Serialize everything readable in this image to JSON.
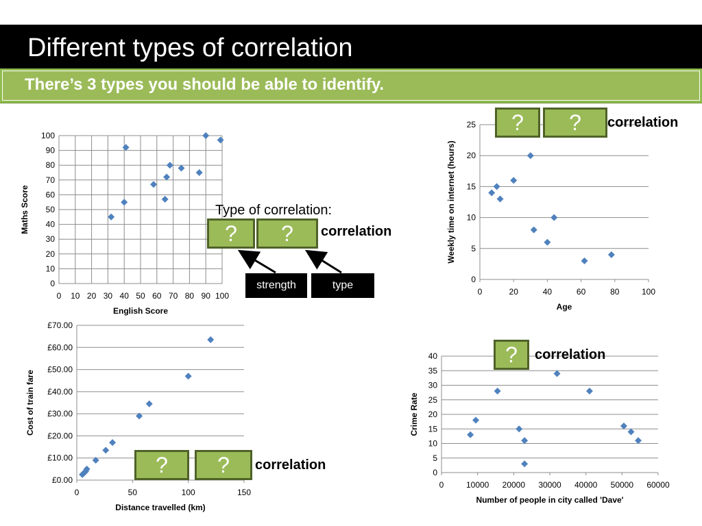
{
  "slide": {
    "title": "Different types of correlation",
    "subtitle": "There’s 3 types you should be able to identify.",
    "type_label": "Type of correlation:",
    "question_mark": "?",
    "correlation_word": "correlation",
    "strength_label": "strength",
    "type_label_box": "type",
    "colors": {
      "title_bg": "#000000",
      "green": "#9bbb59",
      "green_border": "#4f6228",
      "marker": "#4f81bd"
    }
  },
  "chart_data": [
    {
      "type": "scatter",
      "title": "",
      "xlabel": "English Score",
      "ylabel": "Maths Score",
      "xlim": [
        0,
        100
      ],
      "ylim": [
        0,
        100
      ],
      "xticks": [
        0,
        10,
        20,
        30,
        40,
        50,
        60,
        70,
        80,
        90,
        100
      ],
      "yticks": [
        0,
        10,
        20,
        30,
        40,
        50,
        60,
        70,
        80,
        90,
        100
      ],
      "ytick_labels": [
        "0",
        "10",
        "20",
        "30",
        "40",
        "50",
        "60",
        "70",
        "80",
        "90",
        "100"
      ],
      "xtick_labels": [
        "0",
        "10",
        "20",
        "30",
        "40",
        "50",
        "60",
        "70",
        "80",
        "90",
        "100"
      ],
      "grid": "both",
      "points": [
        [
          32,
          45
        ],
        [
          40,
          55
        ],
        [
          41,
          92
        ],
        [
          58,
          67
        ],
        [
          65,
          57
        ],
        [
          66,
          72
        ],
        [
          68,
          80
        ],
        [
          75,
          78
        ],
        [
          86,
          75
        ],
        [
          90,
          100
        ],
        [
          99,
          97
        ]
      ]
    },
    {
      "type": "scatter",
      "title": "",
      "xlabel": "Age",
      "ylabel": "Weekly time on internet (hours)",
      "xlim": [
        0,
        100
      ],
      "ylim": [
        0,
        25
      ],
      "xticks": [
        0,
        20,
        40,
        60,
        80,
        100
      ],
      "yticks": [
        0,
        5,
        10,
        15,
        20,
        25
      ],
      "xtick_labels": [
        "0",
        "20",
        "40",
        "60",
        "80",
        "100"
      ],
      "ytick_labels": [
        "0",
        "5",
        "10",
        "15",
        "20",
        "25"
      ],
      "grid": "y",
      "points": [
        [
          7,
          14
        ],
        [
          10,
          15
        ],
        [
          12,
          13
        ],
        [
          20,
          16
        ],
        [
          30,
          20
        ],
        [
          32,
          8
        ],
        [
          40,
          6
        ],
        [
          44,
          10
        ],
        [
          62,
          3
        ],
        [
          78,
          4
        ]
      ]
    },
    {
      "type": "scatter",
      "title": "",
      "xlabel": "Distance travelled (km)",
      "ylabel": "Cost of train fare",
      "xlim": [
        0,
        150
      ],
      "ylim": [
        0,
        70
      ],
      "xticks": [
        0,
        50,
        100,
        150
      ],
      "yticks": [
        0,
        10,
        20,
        30,
        40,
        50,
        60,
        70
      ],
      "xtick_labels": [
        "0",
        "50",
        "100",
        "150"
      ],
      "ytick_labels": [
        "£0.00",
        "£10.00",
        "£20.00",
        "£30.00",
        "£40.00",
        "£50.00",
        "£60.00",
        "£70.00"
      ],
      "grid": "y",
      "points": [
        [
          5,
          2.5
        ],
        [
          6,
          3
        ],
        [
          7,
          3.5
        ],
        [
          8,
          4
        ],
        [
          9,
          5
        ],
        [
          17,
          9
        ],
        [
          26,
          13.5
        ],
        [
          32,
          17
        ],
        [
          56,
          29
        ],
        [
          65,
          34.5
        ],
        [
          100,
          47
        ],
        [
          120,
          63.5
        ]
      ]
    },
    {
      "type": "scatter",
      "title": "",
      "xlabel": "Number of people in city called 'Dave'",
      "ylabel": "Crime Rate",
      "xlim": [
        0,
        60000
      ],
      "ylim": [
        0,
        40
      ],
      "xticks": [
        0,
        10000,
        20000,
        30000,
        40000,
        50000,
        60000
      ],
      "yticks": [
        0,
        5,
        10,
        15,
        20,
        25,
        30,
        35,
        40
      ],
      "xtick_labels": [
        "0",
        "10000",
        "20000",
        "30000",
        "40000",
        "50000",
        "60000"
      ],
      "ytick_labels": [
        "0",
        "5",
        "10",
        "15",
        "20",
        "25",
        "30",
        "35",
        "40"
      ],
      "grid": "y",
      "points": [
        [
          8000,
          13
        ],
        [
          9500,
          18
        ],
        [
          15500,
          28
        ],
        [
          21500,
          15
        ],
        [
          23000,
          11
        ],
        [
          23000,
          3
        ],
        [
          32000,
          34
        ],
        [
          41000,
          28
        ],
        [
          50500,
          16
        ],
        [
          52500,
          14
        ],
        [
          54500,
          11
        ]
      ]
    }
  ]
}
